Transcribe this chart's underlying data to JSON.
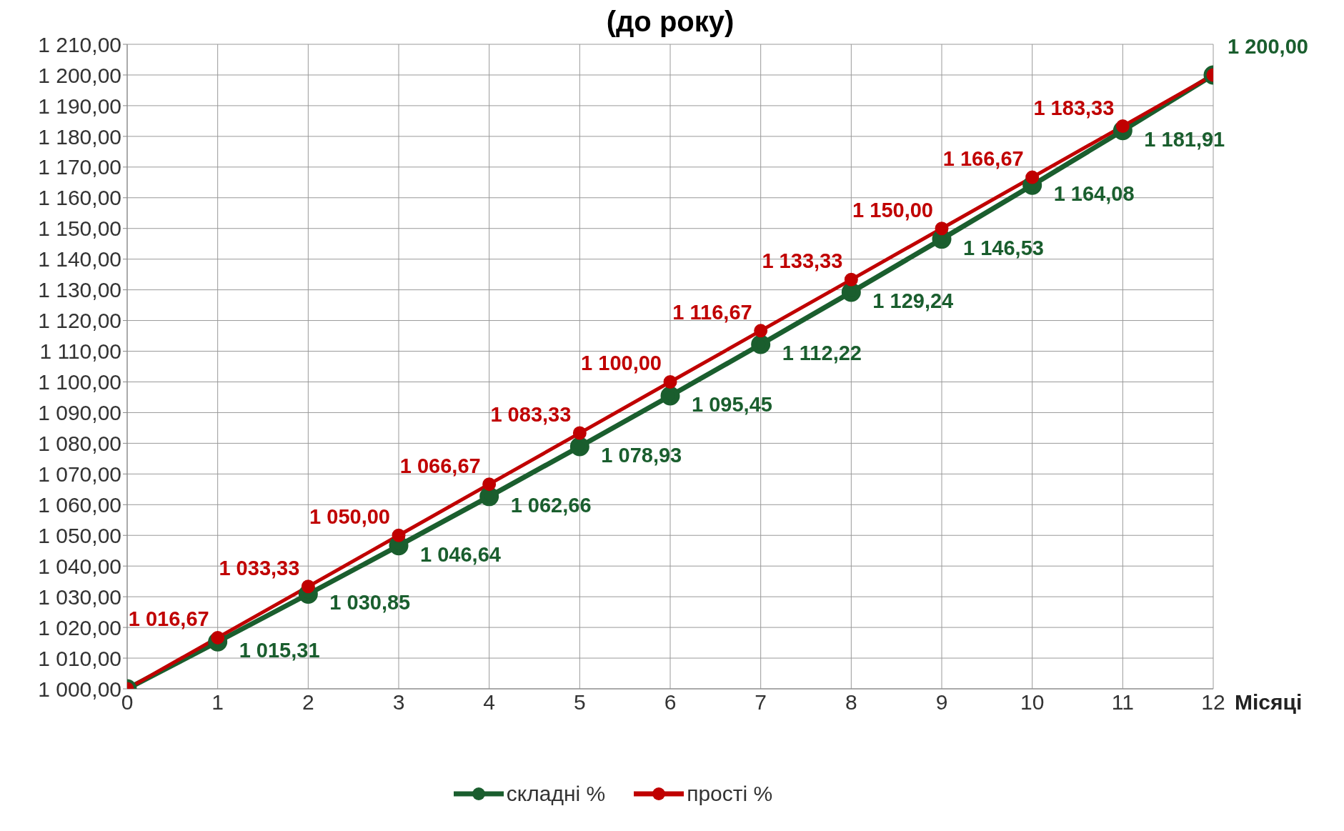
{
  "chart_data": {
    "type": "line",
    "title": "(до року)",
    "xlabel": "Місяці",
    "x": [
      0,
      1,
      2,
      3,
      4,
      5,
      6,
      7,
      8,
      9,
      10,
      11,
      12
    ],
    "xlim": [
      0,
      12
    ],
    "xticks": [
      0,
      1,
      2,
      3,
      4,
      5,
      6,
      7,
      8,
      9,
      10,
      11,
      12
    ],
    "ylim": [
      1000,
      1210
    ],
    "yticks": [
      {
        "value": 1000,
        "label": "1 000,00"
      },
      {
        "value": 1010,
        "label": "1 010,00"
      },
      {
        "value": 1020,
        "label": "1 020,00"
      },
      {
        "value": 1030,
        "label": "1 030,00"
      },
      {
        "value": 1040,
        "label": "1 040,00"
      },
      {
        "value": 1050,
        "label": "1 050,00"
      },
      {
        "value": 1060,
        "label": "1 060,00"
      },
      {
        "value": 1070,
        "label": "1 070,00"
      },
      {
        "value": 1080,
        "label": "1 080,00"
      },
      {
        "value": 1090,
        "label": "1 090,00"
      },
      {
        "value": 1100,
        "label": "1 100,00"
      },
      {
        "value": 1110,
        "label": "1 110,00"
      },
      {
        "value": 1120,
        "label": "1 120,00"
      },
      {
        "value": 1130,
        "label": "1 130,00"
      },
      {
        "value": 1140,
        "label": "1 140,00"
      },
      {
        "value": 1150,
        "label": "1 150,00"
      },
      {
        "value": 1160,
        "label": "1 160,00"
      },
      {
        "value": 1170,
        "label": "1 170,00"
      },
      {
        "value": 1180,
        "label": "1 180,00"
      },
      {
        "value": 1190,
        "label": "1 190,00"
      },
      {
        "value": 1200,
        "label": "1 200,00"
      },
      {
        "value": 1210,
        "label": "1 210,00"
      }
    ],
    "series": [
      {
        "name": "складні %",
        "color": "#1a5e2e",
        "values": [
          1000,
          1015.31,
          1030.85,
          1046.64,
          1062.66,
          1078.93,
          1095.45,
          1112.22,
          1129.24,
          1146.53,
          1164.08,
          1181.91,
          1200
        ],
        "value_labels": [
          null,
          "1 015,31",
          "1 030,85",
          "1 046,64",
          "1 062,66",
          "1 078,93",
          "1 095,45",
          "1 112,22",
          "1 129,24",
          "1 146,53",
          "1 164,08",
          "1 181,91",
          "1 200,00"
        ]
      },
      {
        "name": "прості %",
        "color": "#c00000",
        "values": [
          1000,
          1016.67,
          1033.33,
          1050,
          1066.67,
          1083.33,
          1100,
          1116.67,
          1133.33,
          1150,
          1166.67,
          1183.33,
          1200
        ],
        "value_labels": [
          null,
          "1 016,67",
          "1 033,33",
          "1 050,00",
          "1 066,67",
          "1 083,33",
          "1 100,00",
          "1 116,67",
          "1 133,33",
          "1 150,00",
          "1 166,67",
          "1 183,33",
          null
        ]
      }
    ],
    "grid": true,
    "legend": "bottom",
    "marker": "circle",
    "line_style": "solid"
  }
}
